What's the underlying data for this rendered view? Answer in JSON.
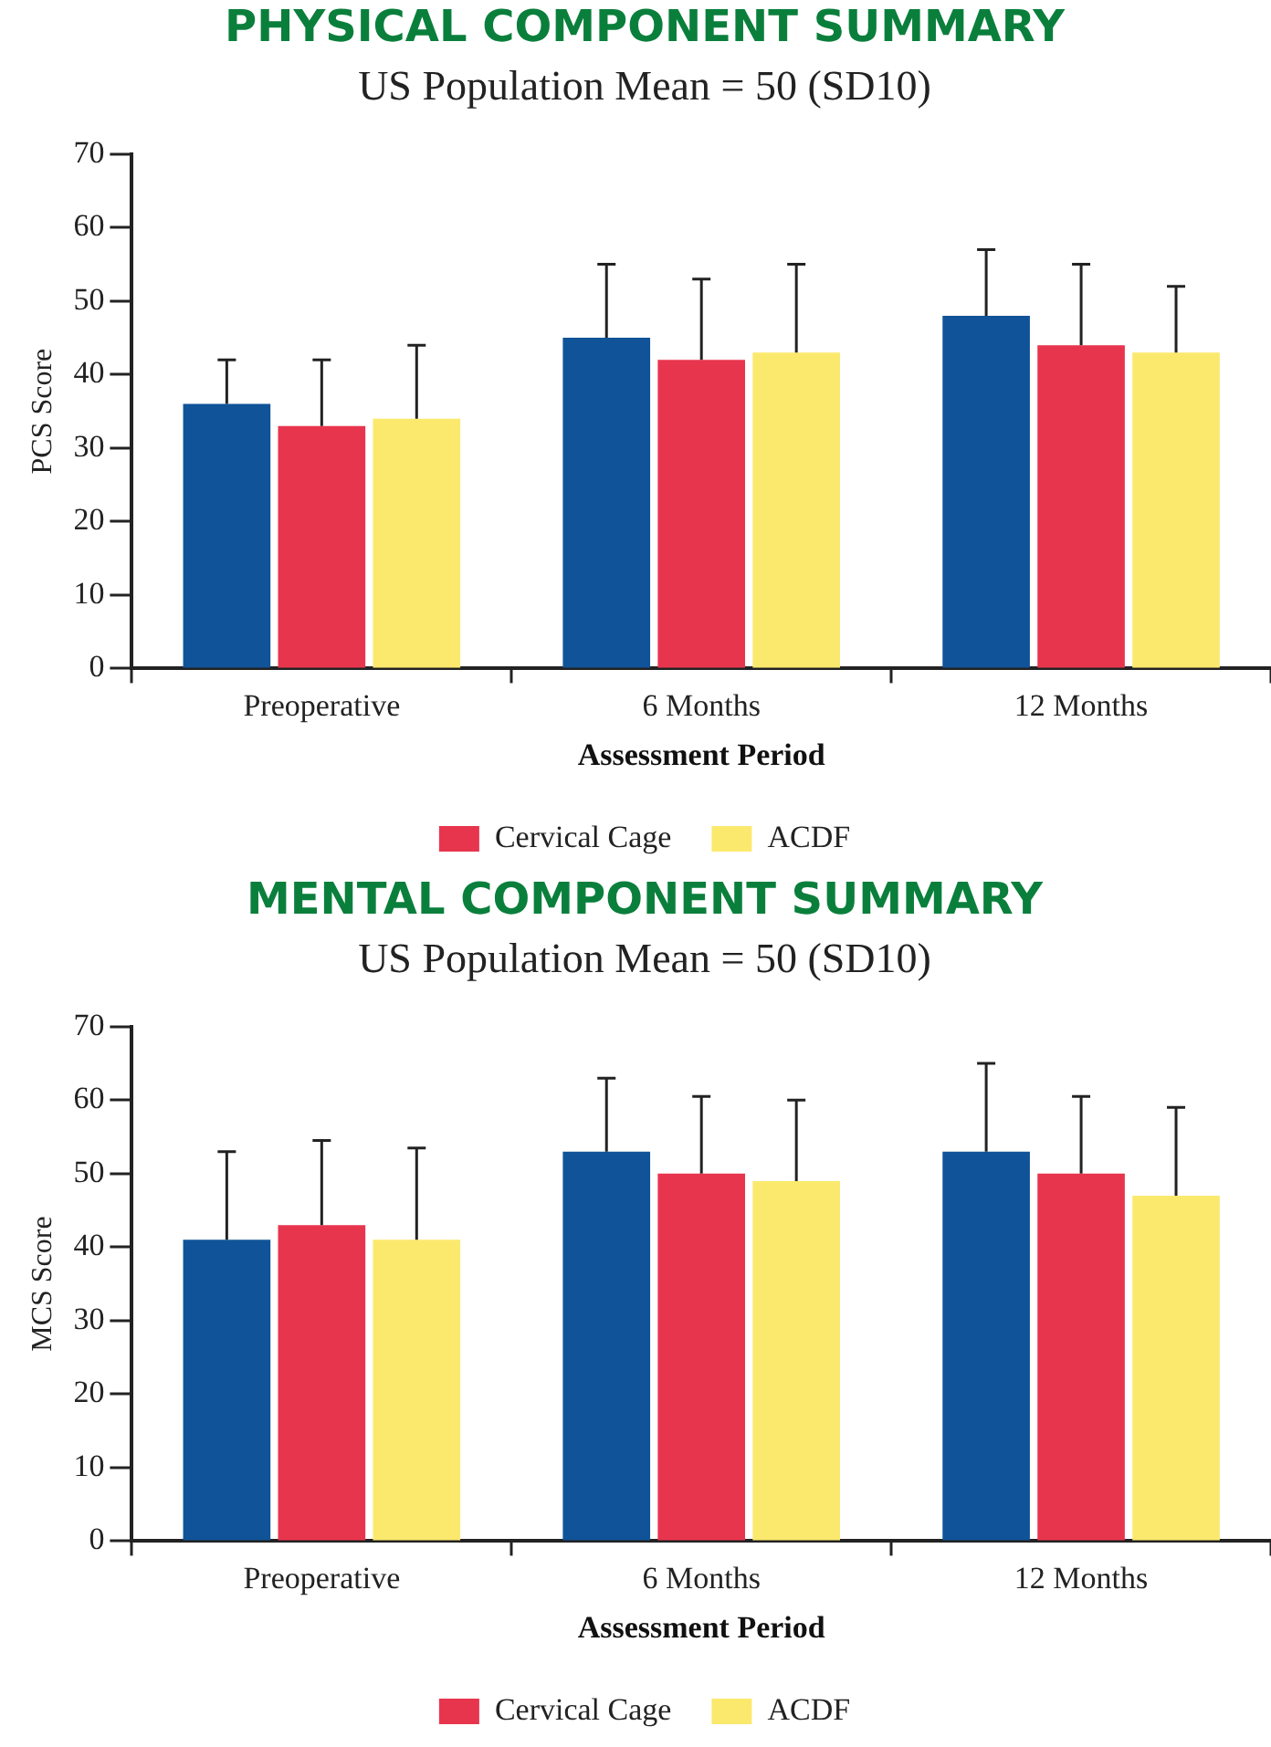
{
  "chart_data": [
    {
      "type": "bar",
      "title": "PHYSICAL COMPONENT SUMMARY",
      "subtitle": "US Population Mean = 50 (SD10)",
      "xlabel": "Assessment Period",
      "ylabel": "PCS Score",
      "categories": [
        "Preoperative",
        "6 Months",
        "12 Months"
      ],
      "ylim": [
        0,
        70
      ],
      "yticks": [
        0,
        10,
        20,
        30,
        40,
        50,
        60,
        70
      ],
      "grid": false,
      "legend": "bottom",
      "series": [
        {
          "color": "#105398",
          "values": [
            36,
            45,
            48
          ],
          "errors": [
            [
              36,
              42
            ],
            [
              45,
              55
            ],
            [
              48,
              57
            ]
          ]
        },
        {
          "name": "Cervical Cage",
          "color": "#e8354e",
          "values": [
            33,
            42,
            44
          ],
          "errors": [
            [
              33,
              42
            ],
            [
              42,
              53
            ],
            [
              44,
              55
            ]
          ]
        },
        {
          "name": "ACDF",
          "color": "#fbe96e",
          "values": [
            34,
            43,
            43
          ],
          "errors": [
            [
              34,
              44
            ],
            [
              43,
              55
            ],
            [
              43,
              52
            ]
          ]
        }
      ]
    },
    {
      "type": "bar",
      "title": "MENTAL COMPONENT SUMMARY",
      "subtitle": "US Population Mean = 50 (SD10)",
      "xlabel": "Assessment Period",
      "ylabel": "MCS Score",
      "categories": [
        "Preoperative",
        "6 Months",
        "12 Months"
      ],
      "ylim": [
        0,
        70
      ],
      "yticks": [
        0,
        10,
        20,
        30,
        40,
        50,
        60,
        70
      ],
      "grid": false,
      "legend": "bottom",
      "series": [
        {
          "color": "#105398",
          "values": [
            41,
            53,
            53
          ],
          "errors": [
            [
              41,
              53
            ],
            [
              53,
              63
            ],
            [
              53,
              65
            ]
          ]
        },
        {
          "name": "Cervical Cage",
          "color": "#e8354e",
          "values": [
            43,
            50,
            50
          ],
          "errors": [
            [
              43,
              54.5
            ],
            [
              50,
              60.5
            ],
            [
              50,
              60.5
            ]
          ]
        },
        {
          "name": "ACDF",
          "color": "#fbe96e",
          "values": [
            41,
            49,
            47
          ],
          "errors": [
            [
              41,
              53.5
            ],
            [
              49,
              60
            ],
            [
              47,
              59
            ]
          ]
        }
      ]
    }
  ]
}
